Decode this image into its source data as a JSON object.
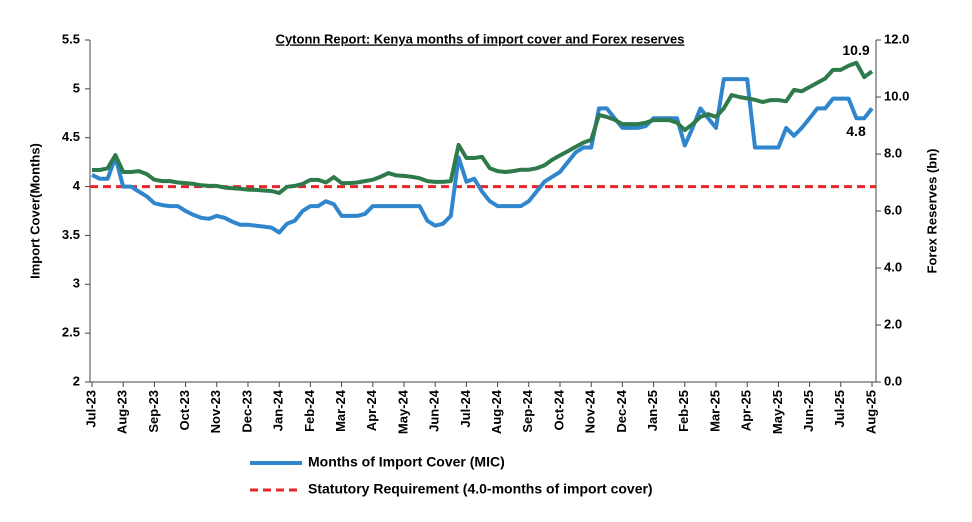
{
  "chart_data": {
    "type": "line",
    "title": "Cytonn Report: Kenya months of import cover and Forex reserves",
    "y_label": "Import Cover(Months)",
    "y2_label": "Forex Reserves (bn)",
    "categories": [
      "Jul-23",
      null,
      null,
      null,
      "Aug-23",
      null,
      null,
      null,
      "Sep-23",
      null,
      null,
      null,
      "Oct-23",
      null,
      null,
      null,
      "Nov-23",
      null,
      null,
      null,
      "Dec-23",
      null,
      null,
      null,
      "Jan-24",
      null,
      null,
      null,
      "Feb-24",
      null,
      null,
      null,
      "Mar-24",
      null,
      null,
      null,
      "Apr-24",
      null,
      null,
      null,
      "May-24",
      null,
      null,
      null,
      "Jun-24",
      null,
      null,
      null,
      "Jul-24",
      null,
      null,
      null,
      "Aug-24",
      null,
      null,
      null,
      "Sep-24",
      null,
      null,
      null,
      "Oct-24",
      null,
      null,
      null,
      "Nov-24",
      null,
      null,
      null,
      "Dec-24",
      null,
      null,
      null,
      "Jan-25",
      null,
      null,
      null,
      "Feb-25",
      null,
      null,
      null,
      "Mar-25",
      null,
      null,
      null,
      "Apr-25",
      null,
      null,
      null,
      "May-25",
      null,
      null,
      null,
      "Jun-25",
      null,
      null,
      null,
      "Jul-25",
      null,
      null,
      null,
      "Aug-25"
    ],
    "series": [
      {
        "name": "Months of Import Cover (MIC)",
        "color": "#2f86cc",
        "axis": "y",
        "values": [
          4.12,
          4.08,
          4.08,
          4.3,
          4.0,
          4.0,
          3.95,
          3.9,
          3.83,
          3.81,
          3.8,
          3.8,
          3.75,
          3.71,
          3.68,
          3.67,
          3.7,
          3.68,
          3.64,
          3.61,
          3.61,
          3.6,
          3.59,
          3.58,
          3.53,
          3.62,
          3.65,
          3.75,
          3.8,
          3.8,
          3.85,
          3.82,
          3.7,
          3.7,
          3.7,
          3.72,
          3.8,
          3.8,
          3.8,
          3.8,
          3.8,
          3.8,
          3.8,
          3.65,
          3.6,
          3.62,
          3.7,
          4.3,
          4.05,
          4.08,
          3.95,
          3.85,
          3.8,
          3.8,
          3.8,
          3.8,
          3.85,
          3.95,
          4.05,
          4.1,
          4.15,
          4.25,
          4.35,
          4.4,
          4.4,
          4.8,
          4.8,
          4.7,
          4.6,
          4.6,
          4.6,
          4.62,
          4.7,
          4.7,
          4.7,
          4.7,
          4.42,
          4.6,
          4.8,
          4.7,
          4.6,
          5.1,
          5.1,
          5.1,
          5.1,
          4.4,
          4.4,
          4.4,
          4.4,
          4.6,
          4.52,
          4.6,
          4.7,
          4.8,
          4.8,
          4.9,
          4.9,
          4.9,
          4.7,
          4.7,
          4.8
        ],
        "value_labels": [
          null,
          null,
          null,
          null,
          null,
          null,
          null,
          null,
          null,
          null,
          null,
          null,
          null,
          null,
          null,
          null,
          null,
          null,
          null,
          null,
          null,
          null,
          null,
          null,
          null,
          null,
          null,
          null,
          null,
          null,
          null,
          null,
          null,
          null,
          null,
          null,
          null,
          null,
          null,
          null,
          null,
          null,
          null,
          null,
          null,
          null,
          null,
          null,
          null,
          null,
          null,
          null,
          null,
          null,
          null,
          null,
          null,
          null,
          null,
          null,
          null,
          null,
          null,
          null,
          null,
          null,
          null,
          null,
          null,
          null,
          null,
          null,
          null,
          null,
          null,
          null,
          null,
          null,
          null,
          null,
          null,
          null,
          null,
          null,
          null,
          null,
          null,
          null,
          null,
          null,
          null,
          null,
          null,
          null,
          null,
          null,
          null,
          null,
          null,
          null,
          "4.8"
        ]
      },
      {
        "color": "#2f7a4a",
        "axis": "y2",
        "values": [
          7.44,
          7.44,
          7.5,
          7.96,
          7.37,
          7.37,
          7.4,
          7.3,
          7.1,
          7.05,
          7.05,
          7.0,
          6.98,
          6.95,
          6.9,
          6.88,
          6.88,
          6.82,
          6.8,
          6.78,
          6.75,
          6.74,
          6.72,
          6.7,
          6.63,
          6.85,
          6.88,
          6.95,
          7.09,
          7.09,
          7.0,
          7.19,
          6.98,
          6.98,
          7.0,
          7.05,
          7.1,
          7.2,
          7.33,
          7.25,
          7.23,
          7.2,
          7.15,
          7.05,
          7.02,
          7.02,
          7.05,
          8.32,
          7.86,
          7.86,
          7.9,
          7.5,
          7.4,
          7.37,
          7.4,
          7.45,
          7.45,
          7.5,
          7.6,
          7.8,
          7.95,
          8.1,
          8.25,
          8.4,
          8.5,
          9.37,
          9.3,
          9.2,
          9.05,
          9.05,
          9.05,
          9.1,
          9.19,
          9.19,
          9.19,
          9.1,
          8.84,
          9.05,
          9.3,
          9.4,
          9.3,
          9.6,
          10.07,
          10.0,
          9.95,
          9.9,
          9.82,
          9.89,
          9.89,
          9.85,
          10.25,
          10.2,
          10.35,
          10.5,
          10.65,
          10.95,
          10.95,
          11.1,
          11.2,
          10.7,
          10.9
        ],
        "value_labels": [
          null,
          null,
          null,
          null,
          null,
          null,
          null,
          null,
          null,
          null,
          null,
          null,
          null,
          null,
          null,
          null,
          null,
          null,
          null,
          null,
          null,
          null,
          null,
          null,
          null,
          null,
          null,
          null,
          null,
          null,
          null,
          null,
          null,
          null,
          null,
          null,
          null,
          null,
          null,
          null,
          null,
          null,
          null,
          null,
          null,
          null,
          null,
          null,
          null,
          null,
          null,
          null,
          null,
          null,
          null,
          null,
          null,
          null,
          null,
          null,
          null,
          null,
          null,
          null,
          null,
          null,
          null,
          null,
          null,
          null,
          null,
          null,
          null,
          null,
          null,
          null,
          null,
          null,
          null,
          null,
          null,
          null,
          null,
          null,
          null,
          null,
          null,
          null,
          null,
          null,
          null,
          null,
          null,
          null,
          null,
          null,
          null,
          null,
          null,
          null,
          "10.9"
        ]
      }
    ],
    "reference_line": {
      "name": "Statutory Requirement (4.0-months of import cover)",
      "value": 4,
      "color": "#e8252b"
    },
    "ylim": [
      2,
      5.5
    ],
    "yticks": [
      2,
      2.5,
      3,
      3.5,
      4,
      4.5,
      5,
      5.5
    ],
    "y2lim": [
      0,
      12
    ],
    "y2ticks": [
      {
        "value": 0,
        "label": "0.0"
      },
      {
        "value": 2,
        "label": "2.0"
      },
      {
        "value": 4,
        "label": "4.0"
      },
      {
        "value": 6,
        "label": "6.0"
      },
      {
        "value": 8,
        "label": "8.0"
      },
      {
        "value": 10,
        "label": "10.0"
      },
      {
        "value": 12,
        "label": "12.0"
      }
    ]
  }
}
